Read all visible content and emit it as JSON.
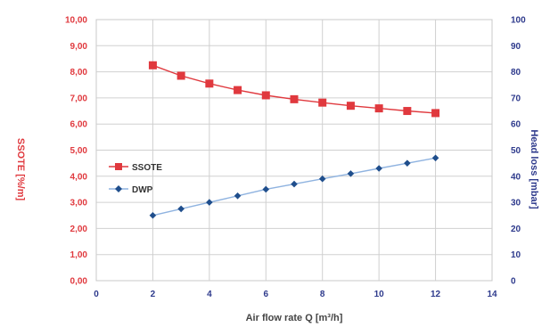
{
  "chart_data": {
    "type": "line",
    "xlabel": "Air flow rate Q [m³/h]",
    "ylabel_left": "SSOTE [%/m]",
    "ylabel_right": "Head loss [mbar]",
    "x_ticks": [
      "0",
      "2",
      "4",
      "6",
      "8",
      "10",
      "12",
      "14"
    ],
    "y_left_ticks": [
      "0,00",
      "1,00",
      "2,00",
      "3,00",
      "4,00",
      "5,00",
      "6,00",
      "7,00",
      "8,00",
      "9,00",
      "10,00"
    ],
    "y_right_ticks": [
      "0",
      "10",
      "20",
      "30",
      "40",
      "50",
      "60",
      "70",
      "80",
      "90",
      "100"
    ],
    "xlim": [
      0,
      14
    ],
    "ylim_left": [
      0,
      10
    ],
    "ylim_right": [
      0,
      100
    ],
    "grid": true,
    "legend_position": "left-middle",
    "series": [
      {
        "name": "SSOTE",
        "axis": "left",
        "color": "#e0393e",
        "marker": "square",
        "x": [
          2,
          3,
          4,
          5,
          6,
          7,
          8,
          9,
          10,
          11,
          12
        ],
        "y": [
          8.25,
          7.85,
          7.55,
          7.3,
          7.1,
          6.95,
          6.82,
          6.7,
          6.6,
          6.5,
          6.42
        ]
      },
      {
        "name": "DWP",
        "axis": "right",
        "color": "#1f4e8c",
        "line_color": "#8fb3e0",
        "marker": "diamond",
        "x": [
          2,
          3,
          4,
          5,
          6,
          7,
          8,
          9,
          10,
          11,
          12
        ],
        "y": [
          25,
          27.5,
          30,
          32.5,
          35,
          37,
          39,
          41,
          43,
          45,
          47
        ]
      }
    ]
  }
}
